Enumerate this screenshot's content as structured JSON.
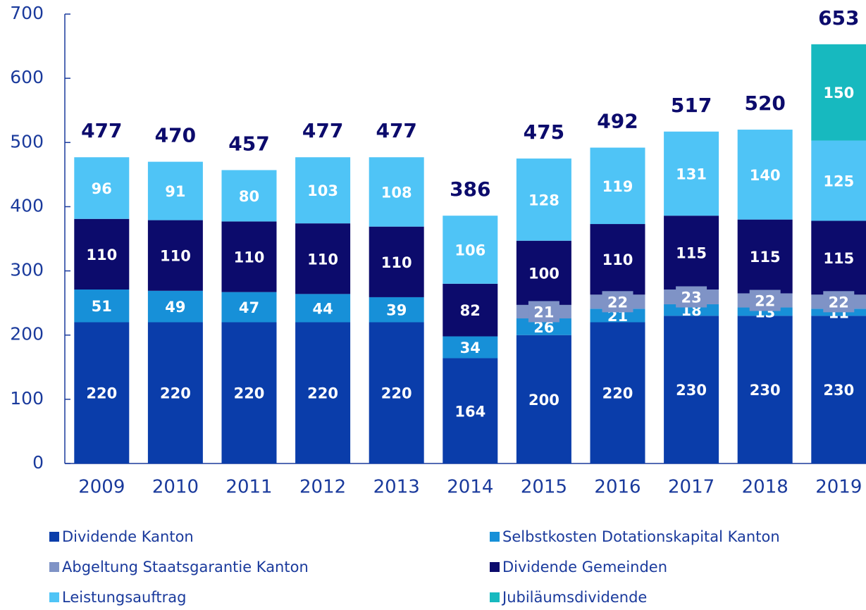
{
  "chart_data": {
    "type": "stacked_bar",
    "categories": [
      "2009",
      "2010",
      "2011",
      "2012",
      "2013",
      "2014",
      "2015",
      "2016",
      "2017",
      "2018",
      "2019"
    ],
    "series": [
      {
        "name": "Dividende Kanton",
        "color": "#0a3daa",
        "values": [
          220,
          220,
          220,
          220,
          220,
          164,
          200,
          220,
          230,
          230,
          230
        ]
      },
      {
        "name": "Selbstkosten Dotationskapital Kanton",
        "color": "#1790d8",
        "values": [
          51,
          49,
          47,
          44,
          39,
          34,
          26,
          21,
          18,
          13,
          11
        ]
      },
      {
        "name": "Abgeltung Staatsgarantie Kanton",
        "color": "#7f93c6",
        "values": [
          null,
          null,
          null,
          null,
          null,
          null,
          21,
          22,
          23,
          22,
          22
        ]
      },
      {
        "name": "Dividende Gemeinden",
        "color": "#0c0b6c",
        "values": [
          110,
          110,
          110,
          110,
          110,
          82,
          100,
          110,
          115,
          115,
          115
        ]
      },
      {
        "name": "Leistungsauftrag",
        "color": "#4fc4f6",
        "values": [
          96,
          91,
          80,
          103,
          108,
          106,
          128,
          119,
          131,
          140,
          125
        ]
      },
      {
        "name": "Jubiläumsdividende",
        "color": "#17b9bf",
        "values": [
          null,
          null,
          null,
          null,
          null,
          null,
          null,
          null,
          null,
          null,
          150
        ]
      }
    ],
    "totals": [
      477,
      470,
      457,
      477,
      477,
      386,
      475,
      492,
      517,
      520,
      653
    ],
    "ylim": [
      0,
      700
    ],
    "yticks": [
      0,
      100,
      200,
      300,
      400,
      500,
      600,
      700
    ]
  }
}
